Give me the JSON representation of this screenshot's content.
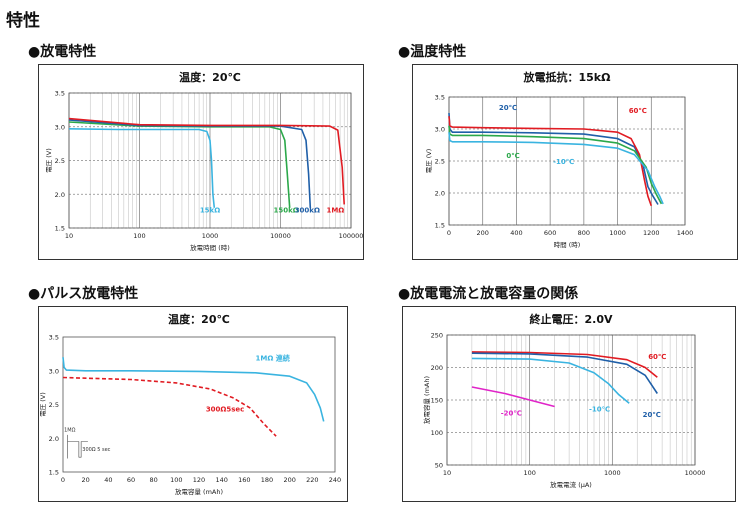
{
  "page": {
    "title": "特性",
    "sections": [
      {
        "title": "●放電特性"
      },
      {
        "title": "●温度特性"
      },
      {
        "title": "●パルス放電特性"
      },
      {
        "title": "●放電電流と放電容量の関係"
      }
    ]
  },
  "chart_data": [
    {
      "type": "line",
      "title": "温度：20℃",
      "xlabel": "放電時間 (時)",
      "ylabel": "電圧 (V)",
      "xscale": "log",
      "xlim": [
        10,
        100000
      ],
      "ylim": [
        1.5,
        3.5
      ],
      "grid": true,
      "xticks": [
        "10",
        "100",
        "1000",
        "10000",
        "100000"
      ],
      "yticks": [
        "1.5",
        "2.0",
        "2.5",
        "3.0",
        "3.5"
      ],
      "series": [
        {
          "name": "15kΩ",
          "color": "#3ab4e0",
          "label_x": 1000,
          "label_y": 1.73,
          "x": [
            10,
            50,
            200,
            700,
            900,
            1000,
            1050,
            1100,
            1150
          ],
          "y": [
            2.97,
            2.96,
            2.96,
            2.96,
            2.93,
            2.8,
            2.5,
            2.0,
            1.8
          ]
        },
        {
          "name": "150kΩ",
          "color": "#2ba84a",
          "label_x": 12000,
          "label_y": 1.73,
          "x": [
            10,
            100,
            1000,
            7000,
            10000,
            11500,
            12500,
            13500
          ],
          "y": [
            3.07,
            3.01,
            3.0,
            3.0,
            2.96,
            2.8,
            2.3,
            1.8
          ]
        },
        {
          "name": "300kΩ",
          "color": "#1f5fa8",
          "label_x": 24000,
          "label_y": 1.73,
          "x": [
            10,
            100,
            1000,
            10000,
            20000,
            23000,
            25000,
            26500
          ],
          "y": [
            3.1,
            3.02,
            3.01,
            3.01,
            2.96,
            2.8,
            2.3,
            1.8
          ]
        },
        {
          "name": "1MΩ",
          "color": "#e11b22",
          "label_x": 60000,
          "label_y": 1.73,
          "x": [
            10,
            100,
            1000,
            10000,
            50000,
            65000,
            75000,
            80000
          ],
          "y": [
            3.12,
            3.03,
            3.02,
            3.02,
            3.01,
            2.95,
            2.4,
            1.85
          ]
        }
      ]
    },
    {
      "type": "line",
      "title": "放電抵抗：15kΩ",
      "xlabel": "時間 (時)",
      "ylabel": "電圧 (V)",
      "xlim": [
        0,
        1400
      ],
      "ylim": [
        1.5,
        3.5
      ],
      "grid": true,
      "xticks": [
        "0",
        "200",
        "400",
        "600",
        "800",
        "1000",
        "1200",
        "1400"
      ],
      "yticks": [
        "1.5",
        "2.0",
        "2.5",
        "3.0",
        "3.5"
      ],
      "series": [
        {
          "name": "20℃",
          "color": "#1f5fa8",
          "label_x": 350,
          "label_y": 3.3,
          "x": [
            0,
            5,
            20,
            200,
            500,
            800,
            1000,
            1100,
            1150,
            1180,
            1210,
            1240
          ],
          "y": [
            3.25,
            3.0,
            2.95,
            2.95,
            2.94,
            2.92,
            2.85,
            2.72,
            2.45,
            2.1,
            1.95,
            1.82
          ]
        },
        {
          "name": "60℃",
          "color": "#e11b22",
          "label_x": 1120,
          "label_y": 3.25,
          "x": [
            0,
            5,
            20,
            200,
            500,
            800,
            1000,
            1080,
            1130,
            1160,
            1180,
            1200
          ],
          "y": [
            3.2,
            3.05,
            3.03,
            3.02,
            3.01,
            3.0,
            2.95,
            2.85,
            2.6,
            2.2,
            1.95,
            1.8
          ]
        },
        {
          "name": "0℃",
          "color": "#2ba84a",
          "label_x": 380,
          "label_y": 2.55,
          "x": [
            0,
            5,
            20,
            200,
            500,
            800,
            1000,
            1100,
            1170,
            1200,
            1230,
            1260
          ],
          "y": [
            3.05,
            2.92,
            2.9,
            2.9,
            2.88,
            2.85,
            2.78,
            2.66,
            2.4,
            2.15,
            1.98,
            1.83
          ]
        },
        {
          "name": "-10℃",
          "color": "#3ab4e0",
          "label_x": 680,
          "label_y": 2.45,
          "x": [
            0,
            5,
            20,
            200,
            500,
            800,
            1000,
            1100,
            1180,
            1220,
            1250,
            1270
          ],
          "y": [
            2.95,
            2.82,
            2.8,
            2.8,
            2.79,
            2.76,
            2.7,
            2.6,
            2.35,
            2.1,
            1.95,
            1.83
          ]
        }
      ]
    },
    {
      "type": "line",
      "title": "温度：20℃",
      "xlabel": "放電容量 (mAh)",
      "ylabel": "電圧 (V)",
      "xlim": [
        0,
        240
      ],
      "ylim": [
        1.5,
        3.5
      ],
      "grid": false,
      "xticks": [
        "0",
        "20",
        "40",
        "60",
        "80",
        "100",
        "120",
        "140",
        "160",
        "180",
        "200",
        "220",
        "240"
      ],
      "yticks": [
        "1.5",
        "2.0",
        "2.5",
        "3.0",
        "3.5"
      ],
      "inset": {
        "label_top": "1MΩ",
        "label_bottom": "300Ω 5 sec"
      },
      "series": [
        {
          "name": "1MΩ 連続",
          "color": "#3ab4e0",
          "dash": false,
          "label_x": 185,
          "label_y": 3.15,
          "x": [
            0,
            1,
            3,
            20,
            60,
            120,
            170,
            200,
            215,
            222,
            227,
            230
          ],
          "y": [
            3.2,
            3.05,
            3.01,
            3.0,
            3.0,
            2.99,
            2.97,
            2.92,
            2.82,
            2.65,
            2.45,
            2.25
          ]
        },
        {
          "name": "300Ω5sec",
          "color": "#e11b22",
          "dash": true,
          "label_x": 143,
          "label_y": 2.4,
          "x": [
            0,
            20,
            60,
            100,
            130,
            150,
            165,
            178,
            188
          ],
          "y": [
            2.9,
            2.89,
            2.87,
            2.82,
            2.73,
            2.6,
            2.45,
            2.2,
            2.03
          ]
        }
      ]
    },
    {
      "type": "line",
      "title": "終止電圧：2.0V",
      "xlabel": "放電電流 (μA)",
      "ylabel": "放電容量 (mAh)",
      "xscale": "log",
      "xlim": [
        10,
        10000
      ],
      "ylim": [
        50,
        250
      ],
      "grid": true,
      "xticks": [
        "10",
        "100",
        "1000",
        "10000"
      ],
      "yticks": [
        "50",
        "100",
        "150",
        "200",
        "250"
      ],
      "series": [
        {
          "name": "60℃",
          "color": "#e11b22",
          "label_x": 3500,
          "label_y": 213,
          "x": [
            20,
            100,
            500,
            1500,
            2500,
            3500
          ],
          "y": [
            224,
            223,
            220,
            212,
            200,
            185
          ]
        },
        {
          "name": "20℃",
          "color": "#1f5fa8",
          "label_x": 3000,
          "label_y": 124,
          "x": [
            20,
            100,
            500,
            1500,
            2500,
            3500
          ],
          "y": [
            222,
            221,
            216,
            205,
            188,
            160
          ]
        },
        {
          "name": "-10℃",
          "color": "#3ab4e0",
          "label_x": 700,
          "label_y": 132,
          "x": [
            20,
            100,
            300,
            600,
            900,
            1200,
            1600
          ],
          "y": [
            214,
            213,
            207,
            192,
            175,
            158,
            145
          ]
        },
        {
          "name": "-20℃",
          "color": "#e024c8",
          "label_x": 60,
          "label_y": 126,
          "x": [
            20,
            50,
            100,
            200
          ],
          "y": [
            170,
            160,
            150,
            140
          ]
        }
      ]
    }
  ]
}
